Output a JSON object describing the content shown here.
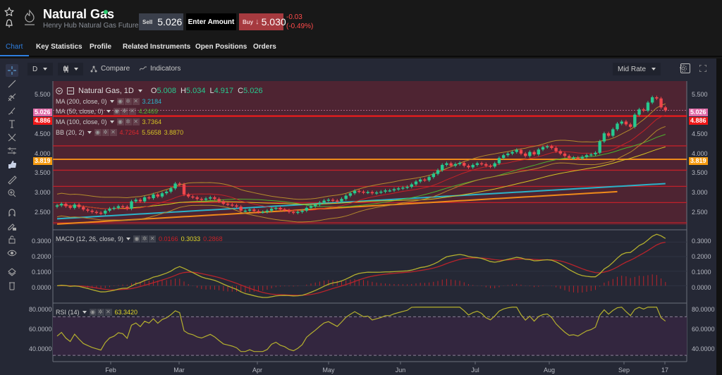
{
  "header": {
    "instrument_name": "Natural Gas",
    "instrument_subtitle": "Henry Hub Natural Gas Futures",
    "sell_label": "Sell",
    "sell_price": "5.026",
    "amount_label": "Enter Amount",
    "buy_label": "Buy",
    "buy_arrow": "↓",
    "buy_price": "5.030",
    "change_abs": "-0.03",
    "change_pct": "(-0.49%)"
  },
  "tabs": [
    {
      "label": "Chart",
      "active": true
    },
    {
      "label": "Key Statistics"
    },
    {
      "label": "Profile"
    },
    {
      "label": "Related Instruments"
    },
    {
      "label": "Open Positions"
    },
    {
      "label": "Orders"
    }
  ],
  "toolbar": {
    "interval": "D",
    "compare_label": "Compare",
    "indicators_label": "Indicators",
    "rate_label": "Mid Rate"
  },
  "left_tools": [
    "crosshair-icon",
    "trend-line-icon",
    "fib-icon",
    "brush-icon",
    "text-icon",
    "pattern-icon",
    "measure-icon",
    "thumbs-up-icon",
    "ruler-icon",
    "zoom-in-icon",
    "magnet-icon",
    "lock-draw-icon",
    "lock-icon",
    "eye-icon",
    "layers-icon",
    "trash-icon"
  ],
  "main_legend": {
    "title": "Natural Gas, 1D",
    "o_label": "O",
    "o": "5.008",
    "h_label": "H",
    "h": "5.034",
    "l_label": "L",
    "l": "4.917",
    "c_label": "C",
    "c": "5.026",
    "ma200_label": "MA (200, close, 0)",
    "ma200": "3.2184",
    "ma50_label": "MA (50, close, 0)",
    "ma50": "4.2469",
    "ma100_label": "MA (100, close, 0)",
    "ma100": "3.7364",
    "bb_label": "BB (20, 2)",
    "bb_mid": "4.7264",
    "bb_up": "5.5658",
    "bb_low": "3.8870"
  },
  "price_tags": {
    "current": "5.026",
    "line_red": "4.886",
    "line_orange": "3.819"
  },
  "macd_legend": {
    "label": "MACD (12, 26, close, 9)",
    "hist": "0.0166",
    "macd": "0.3033",
    "signal": "0.2868"
  },
  "rsi_legend": {
    "label": "RSI (14)",
    "value": "63.3420"
  },
  "colors": {
    "up": "#26c98f",
    "down": "#f0464c",
    "ma200": "#2bb3c9",
    "ma50": "#4db32e",
    "ma100": "#d4c224",
    "bb_mid": "#c42328",
    "bb_band": "#b48a2c",
    "macd": "#b5b02e",
    "signal": "#b8232b",
    "panel_bg": "#4e2432",
    "rsi_bg": "#33263f"
  },
  "chart_data": [
    {
      "type": "candlestick",
      "title": "Natural Gas, 1D",
      "ylim": [
        2.2,
        5.75
      ],
      "yticks": [
        "2.500",
        "3.000",
        "3.500",
        "4.000",
        "4.500",
        "5.000",
        "5.500"
      ],
      "xticks": [
        "Feb",
        "Mar",
        "Apr",
        "May",
        "Jun",
        "Jul",
        "Aug",
        "Sep",
        "17"
      ],
      "ohlc_last": {
        "open": 5.008,
        "high": 5.034,
        "low": 4.917,
        "close": 5.026
      },
      "close_approx": [
        2.68,
        2.72,
        2.66,
        2.62,
        2.7,
        2.64,
        2.58,
        2.55,
        2.52,
        2.5,
        2.48,
        2.55,
        2.6,
        2.62,
        2.66,
        2.65,
        2.6,
        2.78,
        2.82,
        2.78,
        2.88,
        2.86,
        2.95,
        2.9,
        2.98,
        3.02,
        3.1,
        3.22,
        3.2,
        2.95,
        2.9,
        2.88,
        2.84,
        2.82,
        2.85,
        2.88,
        2.84,
        2.78,
        2.72,
        2.7,
        2.68,
        2.65,
        2.55,
        2.55,
        2.58,
        2.54,
        2.52,
        2.52,
        2.55,
        2.6,
        2.62,
        2.58,
        2.56,
        2.52,
        2.5,
        2.52,
        2.55,
        2.62,
        2.66,
        2.7,
        2.75,
        2.8,
        2.82,
        2.8,
        2.78,
        2.84,
        2.92,
        2.98,
        3.04,
        3.02,
        3.0,
        3.01,
        2.98,
        3.0,
        3.02,
        3.05,
        3.05,
        3.08,
        3.1,
        3.12,
        3.14,
        3.2,
        3.27,
        3.32,
        3.3,
        3.38,
        3.46,
        3.55,
        3.68,
        3.72,
        3.66,
        3.7,
        3.73,
        3.66,
        3.62,
        3.68,
        3.72,
        3.7,
        3.66,
        3.64,
        3.72,
        3.85,
        3.92,
        3.96,
        4.0,
        4.05,
        3.96,
        3.9,
        4.0,
        3.94,
        4.06,
        4.12,
        4.14,
        4.1,
        4.02,
        3.96,
        3.9,
        3.85,
        3.86,
        3.84,
        3.88,
        3.92,
        3.94,
        3.98,
        4.26,
        4.46,
        4.4,
        4.56,
        4.7,
        4.75,
        4.68,
        4.62,
        4.92,
        5.05,
        5.02,
        5.22,
        5.35,
        5.32,
        5.1,
        5.026
      ],
      "overlays": [
        {
          "name": "MA (200, close, 0)",
          "last": 3.2184
        },
        {
          "name": "MA (50, close, 0)",
          "last": 4.2469
        },
        {
          "name": "MA (100, close, 0)",
          "last": 3.7364
        },
        {
          "name": "BB (20, 2)",
          "mid": 4.7264,
          "upper": 5.5658,
          "lower": 3.887
        }
      ],
      "horizontal_lines": [
        {
          "value": 4.886,
          "color": "#ff1a1a"
        },
        {
          "value": 3.819,
          "color": "#f08a1a"
        },
        {
          "value": 4.15,
          "color": "#c0202a"
        },
        {
          "value": 3.55,
          "color": "#c0202a"
        },
        {
          "value": 3.15,
          "color": "#c0202a"
        },
        {
          "value": 2.75,
          "color": "#c0202a"
        },
        {
          "value": 2.25,
          "color": "#c0202a"
        }
      ]
    },
    {
      "type": "line",
      "title": "MACD (12, 26, close, 9)",
      "ylim": [
        -0.1,
        0.36
      ],
      "yticks": [
        "0.0000",
        "0.1000",
        "0.2000",
        "0.3000"
      ],
      "series": [
        {
          "name": "MACD",
          "last": 0.3033
        },
        {
          "name": "Signal",
          "last": 0.2868
        },
        {
          "name": "Histogram",
          "last": 0.0166
        }
      ]
    },
    {
      "type": "line",
      "title": "RSI (14)",
      "ylim": [
        25,
        82
      ],
      "yticks": [
        "40.0000",
        "60.0000",
        "80.0000"
      ],
      "bands": [
        30,
        70
      ],
      "series": [
        {
          "name": "RSI",
          "last": 63.342
        }
      ]
    }
  ]
}
